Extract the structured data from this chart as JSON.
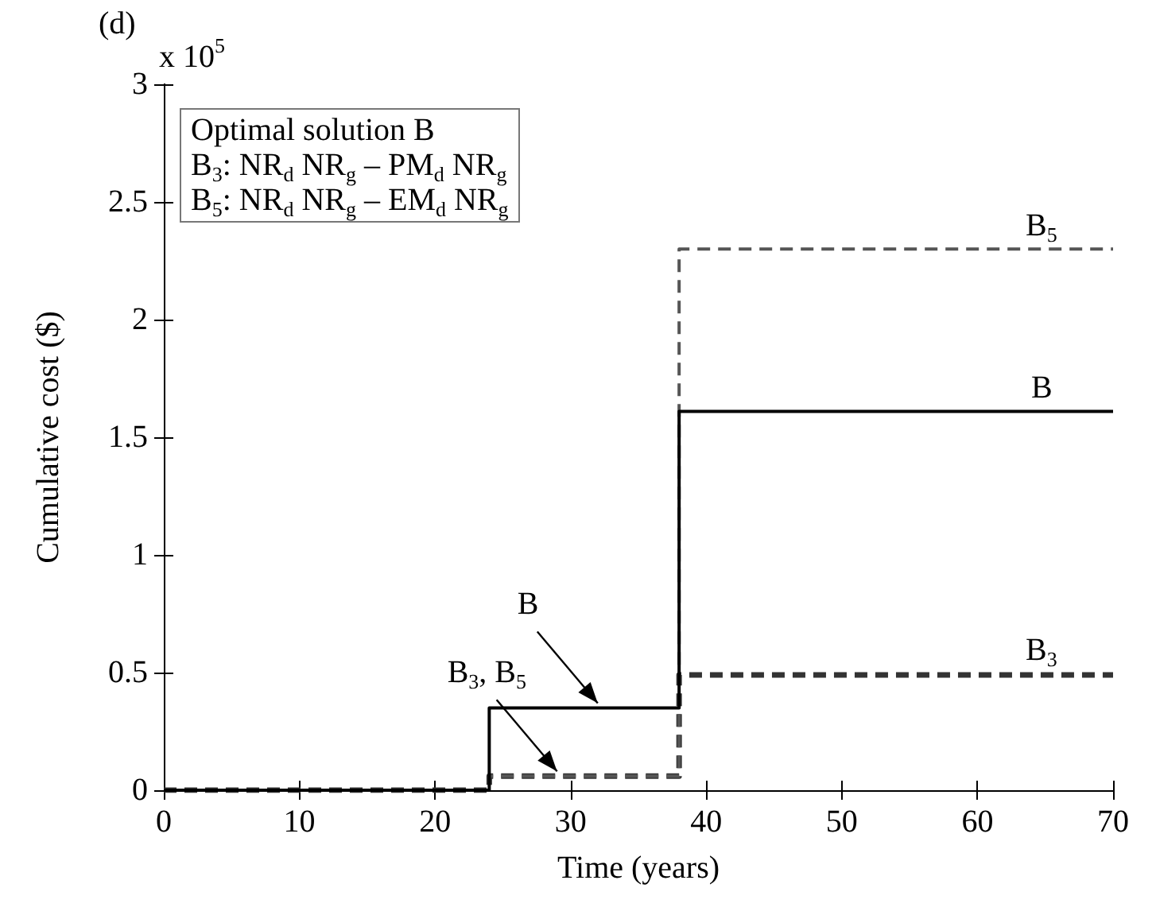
{
  "chart_data": {
    "type": "step",
    "xlabel": "Time (years)",
    "ylabel": "Cumulative cost ($)",
    "x": [
      0,
      24,
      38,
      70
    ],
    "series": [
      {
        "name": "B",
        "color": "#000000",
        "line_style": "solid",
        "values": [
          0,
          0.35,
          1.61,
          1.61
        ]
      },
      {
        "name": "B$_{3}$",
        "color": "#333333",
        "line_style": "dashed",
        "values": [
          0,
          0.06,
          0.49,
          0.49
        ]
      },
      {
        "name": "B$_{5}$",
        "color": "#555555",
        "line_style": "dashed",
        "values": [
          0,
          0.06,
          2.3,
          2.3
        ]
      }
    ],
    "xlim": [
      0,
      70
    ],
    "xticks": [
      0,
      10,
      20,
      30,
      40,
      50,
      60,
      70
    ],
    "ylim": [
      0,
      3
    ],
    "yticks": [
      0,
      0.5,
      1,
      1.5,
      2,
      2.5,
      3
    ],
    "grid": false,
    "legend": false,
    "marker": "none",
    "annotations": [
      "(d)",
      "x 10$^{5}$",
      "Optimal solution B",
      "B$_{3}$: NR$_{d}$ NR$_{g}$ – PM$_{d}$ NR$_{g}$",
      "B$_{5}$: NR$_{d}$ NR$_{g}$ – EM$_{d}$ NR$_{g}$",
      {
        "text": "B",
        "x": 32,
        "y": 0.35
      },
      {
        "text": "B$_{3}$, B$_{5}$",
        "x": 29,
        "y": 0.06
      }
    ]
  }
}
